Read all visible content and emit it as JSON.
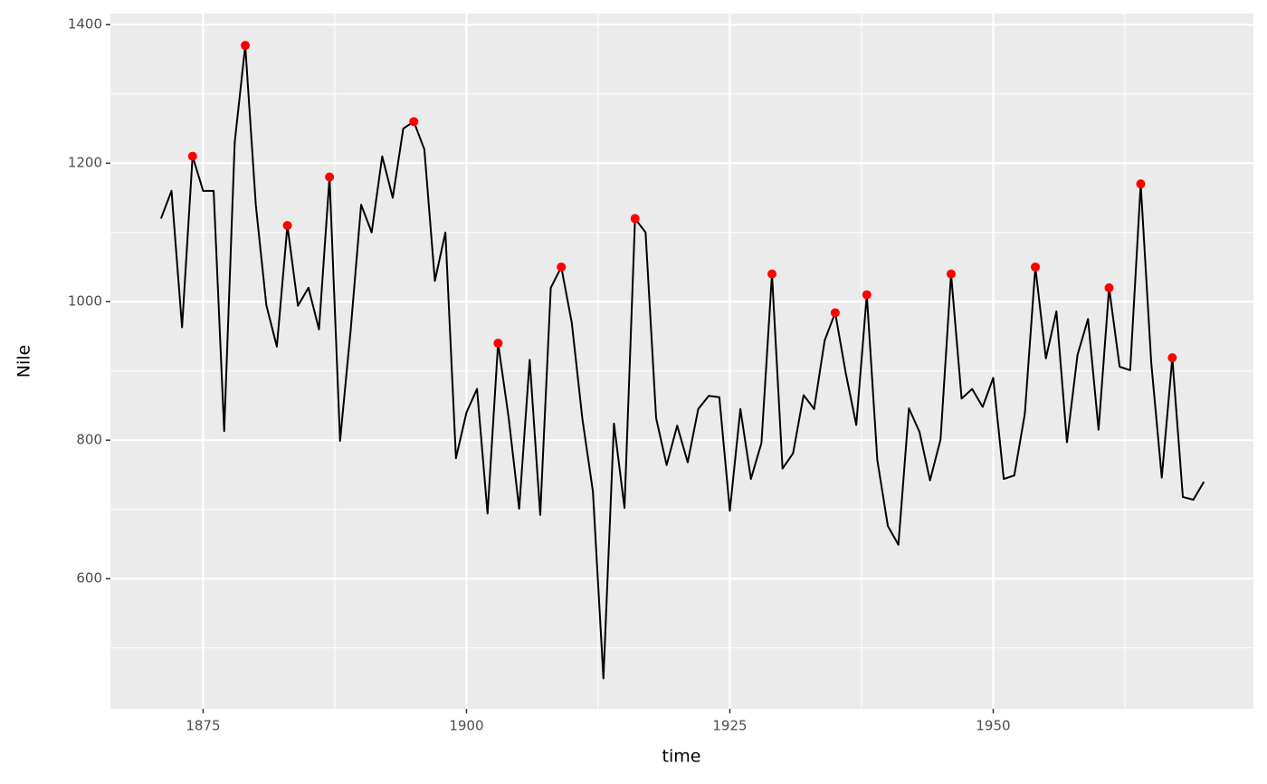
{
  "chart_data": {
    "type": "line",
    "xlabel": "time",
    "ylabel": "Nile",
    "x": [
      1871,
      1872,
      1873,
      1874,
      1875,
      1876,
      1877,
      1878,
      1879,
      1880,
      1881,
      1882,
      1883,
      1884,
      1885,
      1886,
      1887,
      1888,
      1889,
      1890,
      1891,
      1892,
      1893,
      1894,
      1895,
      1896,
      1897,
      1898,
      1899,
      1900,
      1901,
      1902,
      1903,
      1904,
      1905,
      1906,
      1907,
      1908,
      1909,
      1910,
      1911,
      1912,
      1913,
      1914,
      1915,
      1916,
      1917,
      1918,
      1919,
      1920,
      1921,
      1922,
      1923,
      1924,
      1925,
      1926,
      1927,
      1928,
      1929,
      1930,
      1931,
      1932,
      1933,
      1934,
      1935,
      1936,
      1937,
      1938,
      1939,
      1940,
      1941,
      1942,
      1943,
      1944,
      1945,
      1946,
      1947,
      1948,
      1949,
      1950,
      1951,
      1952,
      1953,
      1954,
      1955,
      1956,
      1957,
      1958,
      1959,
      1960,
      1961,
      1962,
      1963,
      1964,
      1965,
      1966,
      1967,
      1968,
      1969,
      1970
    ],
    "series": [
      {
        "color": "#000000",
        "values": [
          1120,
          1160,
          963,
          1210,
          1160,
          1160,
          813,
          1230,
          1370,
          1140,
          995,
          935,
          1110,
          994,
          1020,
          960,
          1180,
          799,
          958,
          1140,
          1100,
          1210,
          1150,
          1250,
          1260,
          1220,
          1030,
          1100,
          774,
          840,
          874,
          694,
          940,
          833,
          701,
          916,
          692,
          1020,
          1050,
          969,
          831,
          726,
          456,
          824,
          702,
          1120,
          1100,
          832,
          764,
          821,
          768,
          845,
          864,
          862,
          698,
          845,
          744,
          796,
          1040,
          759,
          781,
          865,
          845,
          944,
          984,
          897,
          822,
          1010,
          771,
          676,
          649,
          846,
          812,
          742,
          801,
          1040,
          860,
          874,
          848,
          890,
          744,
          749,
          838,
          1050,
          918,
          986,
          797,
          923,
          975,
          815,
          1020,
          906,
          901,
          1170,
          912,
          746,
          919,
          718,
          714,
          740
        ]
      }
    ],
    "points": {
      "color": "#ff0000",
      "x": [
        1874,
        1879,
        1883,
        1887,
        1895,
        1903,
        1909,
        1916,
        1929,
        1935,
        1938,
        1946,
        1954,
        1961,
        1964,
        1967
      ],
      "values": [
        1210,
        1370,
        1110,
        1180,
        1260,
        940,
        1050,
        1120,
        1040,
        984,
        1010,
        1040,
        1050,
        1020,
        1170,
        919
      ]
    },
    "xlim": [
      1866.2,
      1974.7
    ],
    "ylim": [
      412,
      1416
    ],
    "xticks": [
      1875,
      1900,
      1925,
      1950
    ],
    "yticks": [
      600,
      800,
      1000,
      1200,
      1400
    ],
    "grid": true,
    "panel_color": "#ebebeb"
  }
}
